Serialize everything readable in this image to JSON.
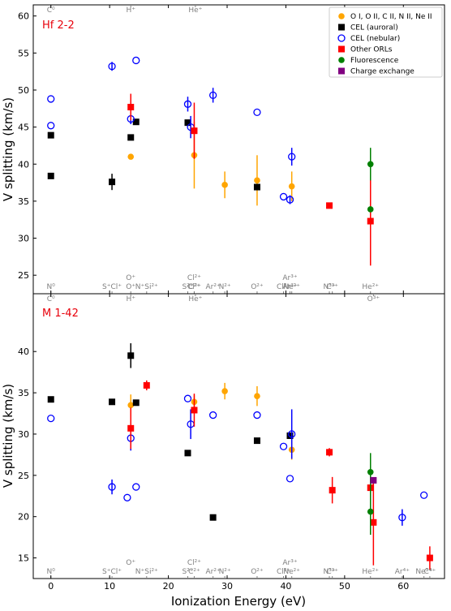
{
  "chart_data": {
    "type": "scatter",
    "xlabel": "Ionization Energy (eV)",
    "ylabel": "V splitting (km/s)",
    "xlim": [
      -3,
      67
    ],
    "grid": false,
    "legend": {
      "placement": "top-right",
      "entries": [
        {
          "label": "O I, O II, C II, N II, Ne II",
          "marker": "circle-filled",
          "color": "#ffa500"
        },
        {
          "label": "CEL (auroral)",
          "marker": "square-filled",
          "color": "#000000"
        },
        {
          "label": "CEL (nebular)",
          "marker": "circle-open",
          "color": "#0000ff"
        },
        {
          "label": "Other ORLs",
          "marker": "square-filled",
          "color": "#ff0000"
        },
        {
          "label": "Fluorescence",
          "marker": "circle-filled",
          "color": "#008000"
        },
        {
          "label": "Charge exchange",
          "marker": "square-filled",
          "color": "#800080"
        }
      ]
    },
    "x_ticks": [
      0,
      10,
      20,
      30,
      40,
      50,
      60
    ],
    "ion_markers_top": [
      {
        "label": "C⁰",
        "x": 0
      },
      {
        "label": "H⁺",
        "x": 13.6
      },
      {
        "label": "He⁺",
        "x": 24.6
      }
    ],
    "ion_markers_bottom": [
      {
        "label": "N⁰",
        "x": 0
      },
      {
        "label": "S⁺Cl⁺",
        "x": 10.4
      },
      {
        "label": "O⁺",
        "x": 13.6
      },
      {
        "label": "N⁺Si²⁺",
        "x": 16.3
      },
      {
        "label": "S²⁺",
        "x": 23.3
      },
      {
        "label": "Cl²⁺",
        "x": 24.4
      },
      {
        "label": "C²⁺",
        "x": 24.4
      },
      {
        "label": "Ar²⁺",
        "x": 27.6
      },
      {
        "label": "N²⁺",
        "x": 29.6
      },
      {
        "label": "O²⁺",
        "x": 35.1
      },
      {
        "label": "Cl³⁺",
        "x": 39.6
      },
      {
        "label": "Ar³⁺",
        "x": 40.7
      },
      {
        "label": "Ne²⁺",
        "x": 41.0
      },
      {
        "label": "N³⁺",
        "x": 47.4
      },
      {
        "label": "C³⁺",
        "x": 47.9
      },
      {
        "label": "He²⁺",
        "x": 54.4
      },
      {
        "label": "Ar⁴⁺",
        "x": 59.8
      },
      {
        "label": "Ne³⁺",
        "x": 63.5
      },
      {
        "label": "C⁴⁺",
        "x": 64.5
      },
      {
        "label": "O³⁺",
        "x": 54.9
      }
    ],
    "panels": [
      {
        "name": "Hf 2-2",
        "ylim": [
          22.5,
          61.5
        ],
        "y_ticks": [
          25,
          30,
          35,
          40,
          45,
          50,
          55,
          60
        ],
        "ion_top": [
          0,
          1,
          2
        ],
        "ion_bottom_row": [
          0,
          1,
          2,
          3,
          4,
          5,
          6,
          7,
          8,
          9,
          10,
          11,
          12,
          13,
          14,
          15
        ],
        "ion_bottom_raised": [
          2,
          5,
          11
        ],
        "series": [
          {
            "name": "O I, O II, C II, N II, Ne II",
            "marker": "circle-filled",
            "color": "#ffa500",
            "points": [
              {
                "x": 13.6,
                "y": 41.0,
                "err": 0
              },
              {
                "x": 24.4,
                "y": 41.2,
                "err": 4.5
              },
              {
                "x": 29.6,
                "y": 37.2,
                "err": 1.8
              },
              {
                "x": 35.1,
                "y": 37.8,
                "err": 3.4
              },
              {
                "x": 41.0,
                "y": 37.0,
                "err": 2.0
              }
            ]
          },
          {
            "name": "CEL (auroral)",
            "marker": "square-filled",
            "color": "#000000",
            "points": [
              {
                "x": 0.0,
                "y": 43.9,
                "err": 0
              },
              {
                "x": 0.0,
                "y": 38.4,
                "err": 0
              },
              {
                "x": 10.4,
                "y": 37.6,
                "err": 1.1
              },
              {
                "x": 13.6,
                "y": 43.6,
                "err": 0
              },
              {
                "x": 14.5,
                "y": 45.7,
                "err": 0
              },
              {
                "x": 23.3,
                "y": 45.6,
                "err": 0
              },
              {
                "x": 35.1,
                "y": 36.9,
                "err": 0
              }
            ]
          },
          {
            "name": "CEL (nebular)",
            "marker": "circle-open",
            "color": "#0000ff",
            "points": [
              {
                "x": 0.0,
                "y": 48.8,
                "err": 0
              },
              {
                "x": 0.0,
                "y": 45.2,
                "err": 0
              },
              {
                "x": 10.4,
                "y": 53.2,
                "err": 0.6
              },
              {
                "x": 14.5,
                "y": 54.0,
                "err": 0
              },
              {
                "x": 13.6,
                "y": 46.1,
                "err": 0.7
              },
              {
                "x": 23.3,
                "y": 48.1,
                "err": 1.0
              },
              {
                "x": 23.8,
                "y": 45.0,
                "err": 1.5
              },
              {
                "x": 27.6,
                "y": 49.3,
                "err": 1.0
              },
              {
                "x": 35.1,
                "y": 47.0,
                "err": 0
              },
              {
                "x": 39.6,
                "y": 35.6,
                "err": 0
              },
              {
                "x": 40.7,
                "y": 35.2,
                "err": 0.6
              },
              {
                "x": 41.0,
                "y": 41.0,
                "err": 1.2
              }
            ]
          },
          {
            "name": "Other ORLs",
            "marker": "square-filled",
            "color": "#ff0000",
            "points": [
              {
                "x": 13.6,
                "y": 47.7,
                "err": 1.8
              },
              {
                "x": 24.4,
                "y": 44.5,
                "err": 3.8
              },
              {
                "x": 47.4,
                "y": 34.4,
                "err": 0
              },
              {
                "x": 54.4,
                "y": 32.3,
                "err": 6.0
              }
            ]
          },
          {
            "name": "Fluorescence",
            "marker": "circle-filled",
            "color": "#008000",
            "points": [
              {
                "x": 54.4,
                "y": 40.0,
                "err": 2.2
              },
              {
                "x": 54.4,
                "y": 33.9,
                "err": 0
              }
            ]
          },
          {
            "name": "Charge exchange",
            "marker": "square-filled",
            "color": "#800080",
            "points": []
          }
        ]
      },
      {
        "name": "M 1-42",
        "ylim": [
          12.5,
          47
        ],
        "y_ticks": [
          15,
          20,
          25,
          30,
          35,
          40
        ],
        "ion_top": [
          0,
          1,
          2,
          19
        ],
        "ion_bottom_row": [
          0,
          1,
          3,
          4,
          6,
          7,
          8,
          9,
          10,
          12,
          13,
          14,
          15,
          16,
          17,
          18
        ],
        "ion_bottom_raised": [
          2,
          5,
          11
        ],
        "series": [
          {
            "name": "O I, O II, C II, N II, Ne II",
            "marker": "circle-filled",
            "color": "#ffa500",
            "points": [
              {
                "x": 13.6,
                "y": 33.5,
                "err": 1.3
              },
              {
                "x": 24.4,
                "y": 33.9,
                "err": 0.8
              },
              {
                "x": 29.6,
                "y": 35.2,
                "err": 1.0
              },
              {
                "x": 35.1,
                "y": 34.6,
                "err": 1.2
              },
              {
                "x": 41.0,
                "y": 28.1,
                "err": 1.2
              }
            ]
          },
          {
            "name": "CEL (auroral)",
            "marker": "square-filled",
            "color": "#000000",
            "points": [
              {
                "x": 0.0,
                "y": 34.2,
                "err": 0
              },
              {
                "x": 10.4,
                "y": 33.9,
                "err": 0
              },
              {
                "x": 13.6,
                "y": 39.5,
                "err": 1.5
              },
              {
                "x": 14.5,
                "y": 33.8,
                "err": 0
              },
              {
                "x": 23.3,
                "y": 27.7,
                "err": 0
              },
              {
                "x": 27.6,
                "y": 19.9,
                "err": 0
              },
              {
                "x": 35.1,
                "y": 29.2,
                "err": 0
              },
              {
                "x": 40.7,
                "y": 29.8,
                "err": 0
              }
            ]
          },
          {
            "name": "CEL (nebular)",
            "marker": "circle-open",
            "color": "#0000ff",
            "points": [
              {
                "x": 0.0,
                "y": 31.9,
                "err": 0
              },
              {
                "x": 10.4,
                "y": 23.6,
                "err": 0.9
              },
              {
                "x": 13.0,
                "y": 22.3,
                "err": 0
              },
              {
                "x": 14.5,
                "y": 23.6,
                "err": 0
              },
              {
                "x": 13.6,
                "y": 29.5,
                "err": 1.5
              },
              {
                "x": 23.3,
                "y": 34.3,
                "err": 0
              },
              {
                "x": 23.8,
                "y": 31.2,
                "err": 1.8
              },
              {
                "x": 27.6,
                "y": 32.3,
                "err": 0
              },
              {
                "x": 35.1,
                "y": 32.3,
                "err": 0
              },
              {
                "x": 39.6,
                "y": 28.5,
                "err": 0
              },
              {
                "x": 40.7,
                "y": 24.6,
                "err": 0
              },
              {
                "x": 41.0,
                "y": 30.0,
                "err": 3.0
              },
              {
                "x": 59.8,
                "y": 19.9,
                "err": 1.0
              },
              {
                "x": 63.5,
                "y": 22.6,
                "err": 0
              }
            ]
          },
          {
            "name": "Other ORLs",
            "marker": "square-filled",
            "color": "#ff0000",
            "points": [
              {
                "x": 13.6,
                "y": 30.7,
                "err": 2.5
              },
              {
                "x": 16.3,
                "y": 35.9,
                "err": 0.6
              },
              {
                "x": 24.4,
                "y": 32.9,
                "err": 2.0
              },
              {
                "x": 47.4,
                "y": 27.8,
                "err": 0.5
              },
              {
                "x": 47.9,
                "y": 23.2,
                "err": 1.6
              },
              {
                "x": 54.4,
                "y": 23.5,
                "err": 1.5
              },
              {
                "x": 54.9,
                "y": 19.3,
                "err": 5.2
              },
              {
                "x": 64.5,
                "y": 15.0,
                "err": 1.4
              }
            ]
          },
          {
            "name": "Fluorescence",
            "marker": "circle-filled",
            "color": "#008000",
            "points": [
              {
                "x": 54.4,
                "y": 25.4,
                "err": 2.3
              },
              {
                "x": 54.4,
                "y": 20.6,
                "err": 2.8
              }
            ]
          },
          {
            "name": "Charge exchange",
            "marker": "square-filled",
            "color": "#800080",
            "points": [
              {
                "x": 54.9,
                "y": 24.4,
                "err": 0
              }
            ]
          }
        ]
      }
    ]
  }
}
